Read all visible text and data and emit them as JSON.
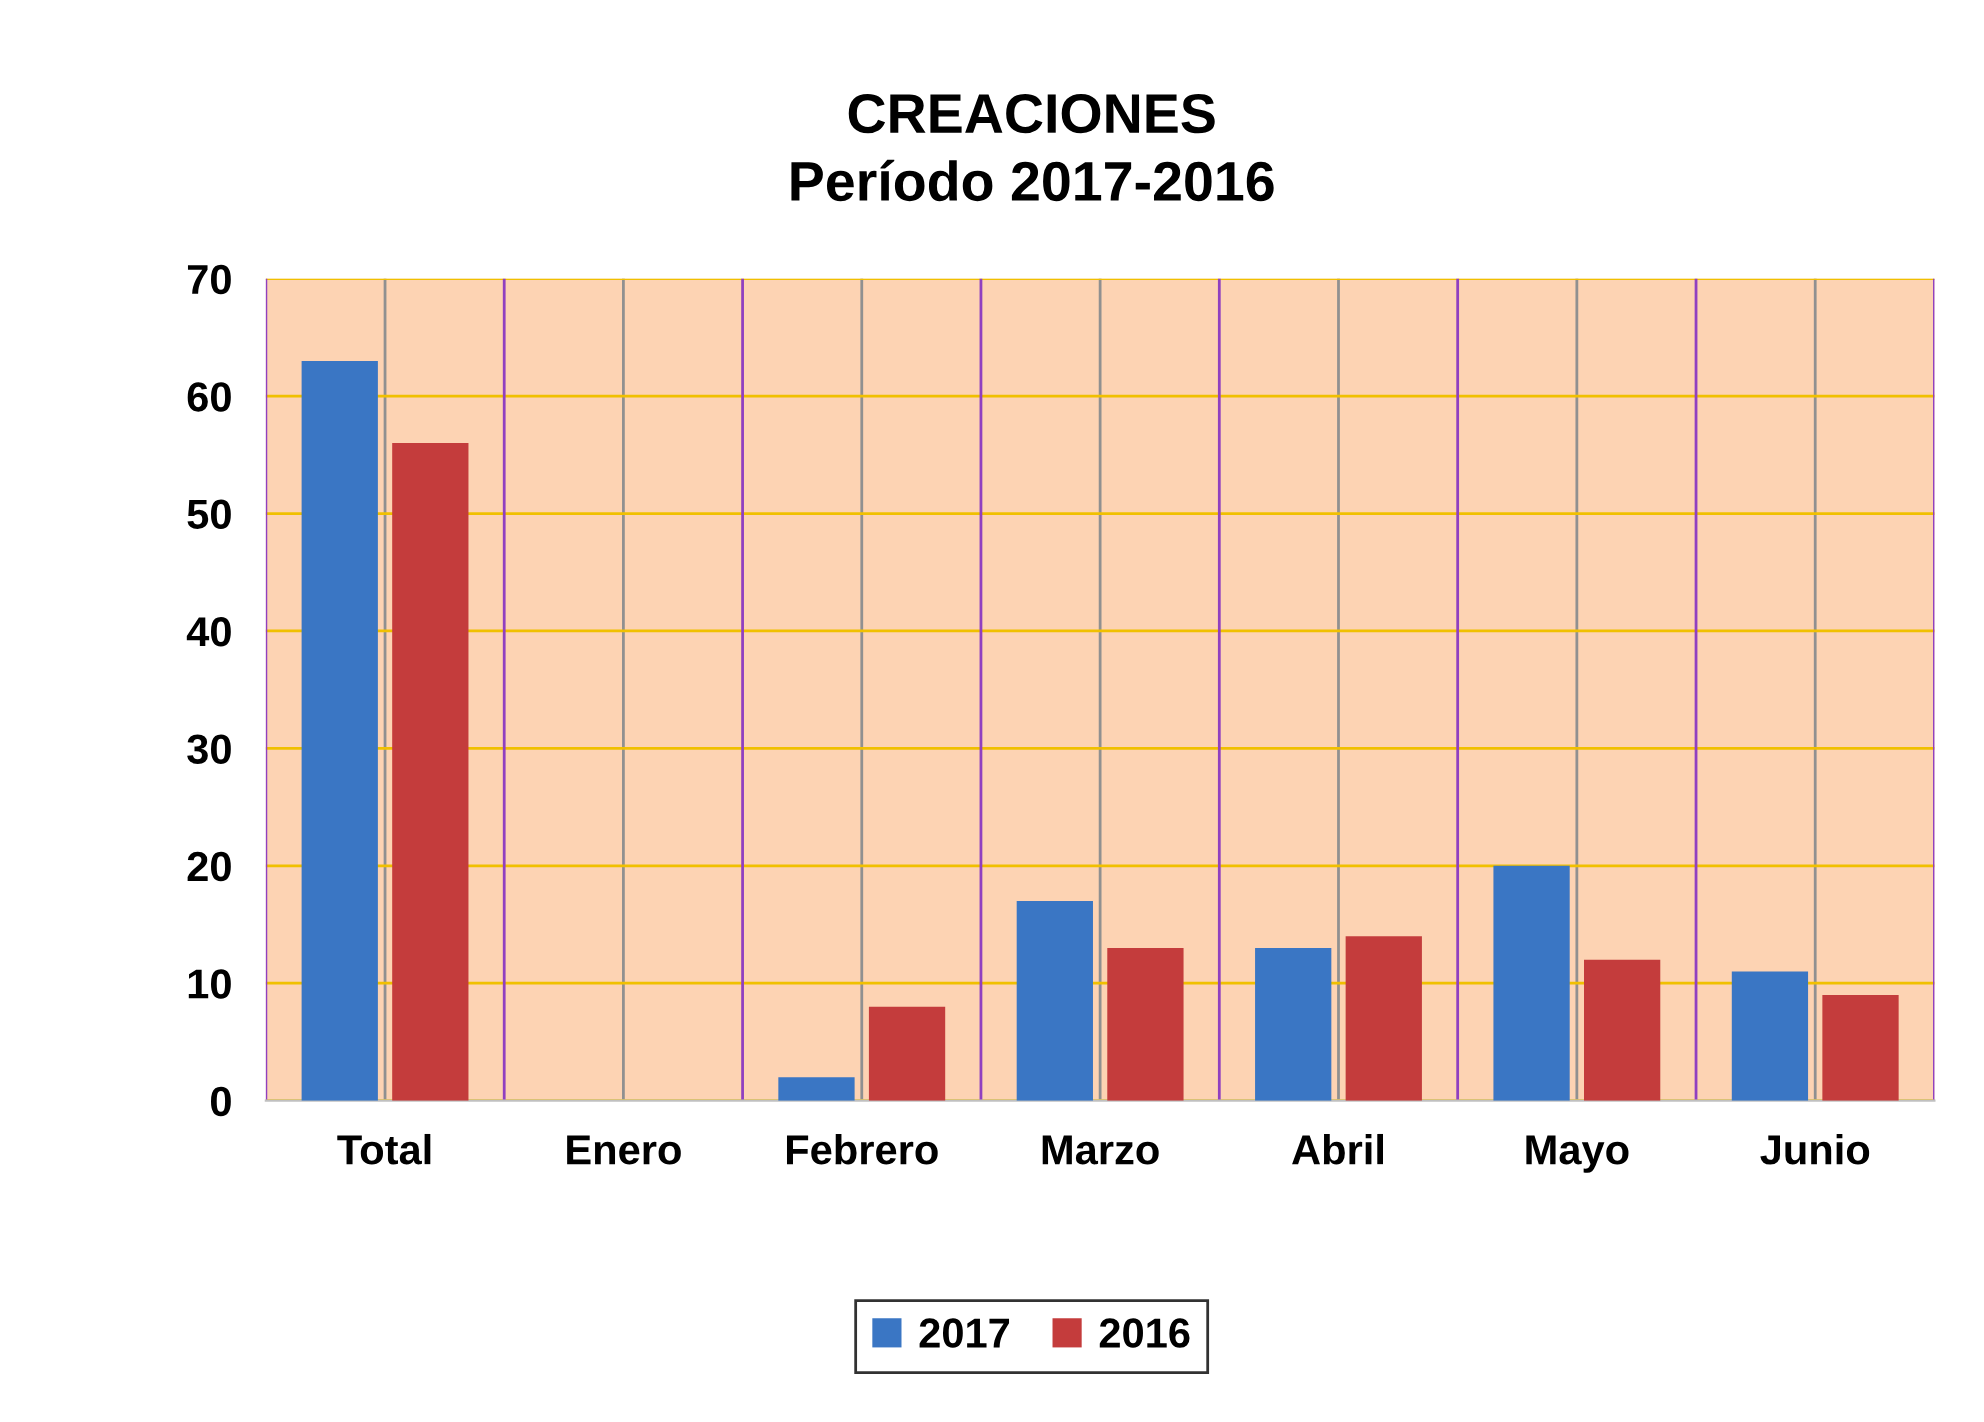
{
  "chart_data": {
    "type": "bar",
    "title": "CREACIONES\nPeríodo 2017-2016",
    "categories": [
      "Total",
      "Enero",
      "Febrero",
      "Marzo",
      "Abril",
      "Mayo",
      "Junio"
    ],
    "series": [
      {
        "name": "2017",
        "color": "#3a76c4",
        "values": [
          63,
          0,
          2,
          17,
          13,
          20,
          11
        ]
      },
      {
        "name": "2016",
        "color": "#c43c3c",
        "values": [
          56,
          0,
          8,
          13,
          14,
          12,
          9
        ]
      }
    ],
    "ylim": [
      0,
      70
    ],
    "yticks": [
      0,
      10,
      20,
      30,
      40,
      50,
      60,
      70
    ],
    "grid": true,
    "legend": "bottom"
  }
}
